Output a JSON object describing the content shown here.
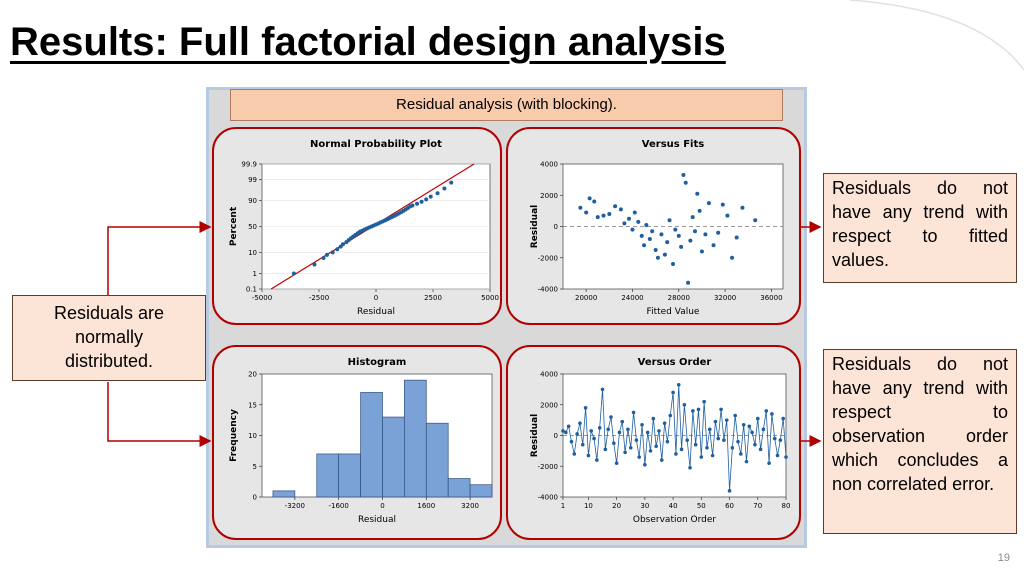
{
  "slide": {
    "title": "Results: Full factorial design analysis",
    "banner": "Residual analysis (with blocking).",
    "page_number": "19"
  },
  "callouts": {
    "left": "Residuals are normally distributed.",
    "right_top": "Residuals do not have any trend with respect to fitted values.",
    "right_bottom": "Residuals do not have any trend with respect to observation order which concludes a non correlated error."
  },
  "colors": {
    "frame": "#b00000",
    "points": "#1f5f9f",
    "bars": "#7aa2d6",
    "fit_line": "#c00000",
    "arrow": "#b00000"
  },
  "chart_data": [
    {
      "type": "scatter",
      "title": "Normal Probability Plot",
      "xlabel": "Residual",
      "ylabel": "Percent",
      "xlim": [
        -5000,
        5000
      ],
      "xticks": [
        -5000,
        -2500,
        0,
        2500,
        5000
      ],
      "xtick_labels": [
        "-5000",
        "-2500",
        "0",
        "2500",
        "5000"
      ],
      "yticks": [
        0.1,
        1,
        10,
        50,
        90,
        99,
        99.9
      ],
      "ytick_labels": [
        "0.1",
        "1",
        "10",
        "50",
        "90",
        "99",
        "99.9"
      ],
      "fit_line": [
        [
          -4600,
          0.1
        ],
        [
          4300,
          99.9
        ]
      ],
      "points": [
        [
          -3600,
          1
        ],
        [
          -2700,
          3
        ],
        [
          -2300,
          6
        ],
        [
          -2150,
          8
        ],
        [
          -1900,
          10
        ],
        [
          -1700,
          13
        ],
        [
          -1550,
          16
        ],
        [
          -1450,
          19
        ],
        [
          -1300,
          22
        ],
        [
          -1200,
          25
        ],
        [
          -1100,
          28
        ],
        [
          -1000,
          31
        ],
        [
          -900,
          34
        ],
        [
          -800,
          37
        ],
        [
          -700,
          40
        ],
        [
          -600,
          42
        ],
        [
          -500,
          44
        ],
        [
          -400,
          46
        ],
        [
          -300,
          48
        ],
        [
          -200,
          50
        ],
        [
          -100,
          52
        ],
        [
          0,
          54
        ],
        [
          100,
          56
        ],
        [
          200,
          58
        ],
        [
          300,
          60
        ],
        [
          400,
          62
        ],
        [
          500,
          64
        ],
        [
          600,
          66
        ],
        [
          700,
          68
        ],
        [
          800,
          70
        ],
        [
          900,
          72
        ],
        [
          1000,
          74
        ],
        [
          1100,
          76
        ],
        [
          1200,
          78
        ],
        [
          1300,
          80
        ],
        [
          1400,
          82
        ],
        [
          1500,
          84
        ],
        [
          1600,
          85
        ],
        [
          1800,
          87
        ],
        [
          2000,
          89
        ],
        [
          2200,
          91
        ],
        [
          2400,
          93
        ],
        [
          2700,
          95
        ],
        [
          3000,
          97
        ],
        [
          3300,
          98.5
        ]
      ]
    },
    {
      "type": "scatter",
      "title": "Versus Fits",
      "xlabel": "Fitted Value",
      "ylabel": "Residual",
      "xlim": [
        18000,
        37000
      ],
      "ylim": [
        -4000,
        4000
      ],
      "xticks": [
        20000,
        24000,
        28000,
        32000,
        36000
      ],
      "yticks": [
        -4000,
        -2000,
        0,
        2000,
        4000
      ],
      "reference_line": 0,
      "points": [
        [
          19500,
          1200
        ],
        [
          20000,
          900
        ],
        [
          20300,
          1800
        ],
        [
          20700,
          1600
        ],
        [
          21000,
          600
        ],
        [
          21500,
          700
        ],
        [
          22000,
          800
        ],
        [
          22500,
          1300
        ],
        [
          23000,
          1100
        ],
        [
          23300,
          200
        ],
        [
          23700,
          500
        ],
        [
          24000,
          -200
        ],
        [
          24200,
          900
        ],
        [
          24500,
          300
        ],
        [
          24800,
          -600
        ],
        [
          25000,
          -1200
        ],
        [
          25200,
          100
        ],
        [
          25500,
          -800
        ],
        [
          25700,
          -300
        ],
        [
          26000,
          -1500
        ],
        [
          26200,
          -2000
        ],
        [
          26500,
          -500
        ],
        [
          26800,
          -1800
        ],
        [
          27000,
          -1000
        ],
        [
          27200,
          400
        ],
        [
          27500,
          -2400
        ],
        [
          27700,
          -200
        ],
        [
          28000,
          -600
        ],
        [
          28200,
          -1300
        ],
        [
          28400,
          3300
        ],
        [
          28600,
          2800
        ],
        [
          28800,
          -3600
        ],
        [
          29000,
          -900
        ],
        [
          29200,
          600
        ],
        [
          29400,
          -300
        ],
        [
          29600,
          2100
        ],
        [
          29800,
          1000
        ],
        [
          30000,
          -1600
        ],
        [
          30300,
          -500
        ],
        [
          30600,
          1500
        ],
        [
          31000,
          -1200
        ],
        [
          31400,
          -400
        ],
        [
          31800,
          1400
        ],
        [
          32200,
          700
        ],
        [
          32600,
          -2000
        ],
        [
          33000,
          -700
        ],
        [
          33500,
          1200
        ],
        [
          34600,
          400
        ]
      ]
    },
    {
      "type": "bar",
      "title": "Histogram",
      "xlabel": "Residual",
      "ylabel": "Frequency",
      "xlim": [
        -4400,
        4000
      ],
      "ylim": [
        0,
        20
      ],
      "xticks": [
        -3200,
        -1600,
        0,
        1600,
        3200
      ],
      "yticks": [
        0,
        5,
        10,
        15,
        20
      ],
      "bin_edges": [
        -4000,
        -3200,
        -2400,
        -1600,
        -800,
        0,
        800,
        1600,
        2400,
        3200,
        4000
      ],
      "values": [
        1,
        0,
        7,
        7,
        17,
        13,
        19,
        12,
        3,
        2
      ]
    },
    {
      "type": "line",
      "title": "Versus Order",
      "xlabel": "Observation Order",
      "ylabel": "Residual",
      "xlim": [
        1,
        80
      ],
      "ylim": [
        -4000,
        4000
      ],
      "xticks": [
        1,
        10,
        20,
        30,
        40,
        50,
        60,
        70,
        80
      ],
      "yticks": [
        -4000,
        -2000,
        0,
        2000,
        4000
      ],
      "reference_line": 0,
      "values": [
        300,
        200,
        600,
        -400,
        -1200,
        100,
        800,
        -600,
        1800,
        -1300,
        300,
        -200,
        -1600,
        500,
        3000,
        -900,
        400,
        1200,
        -500,
        -1800,
        200,
        900,
        -1100,
        400,
        -800,
        1500,
        -300,
        -1400,
        700,
        -1900,
        200,
        -1000,
        1100,
        -700,
        300,
        -1600,
        800,
        -400,
        1300,
        2800,
        -1200,
        3300,
        -900,
        2000,
        -300,
        -2100,
        1600,
        -600,
        1700,
        -1400,
        2200,
        -800,
        400,
        -1300,
        900,
        -200,
        1700,
        -300,
        1000,
        -3600,
        -800,
        1300,
        -400,
        -1200,
        700,
        -1700,
        600,
        200,
        -600,
        1100,
        -900,
        400,
        1600,
        -1800,
        1400,
        -200,
        -1300,
        -300,
        1100,
        -1400
      ]
    }
  ]
}
